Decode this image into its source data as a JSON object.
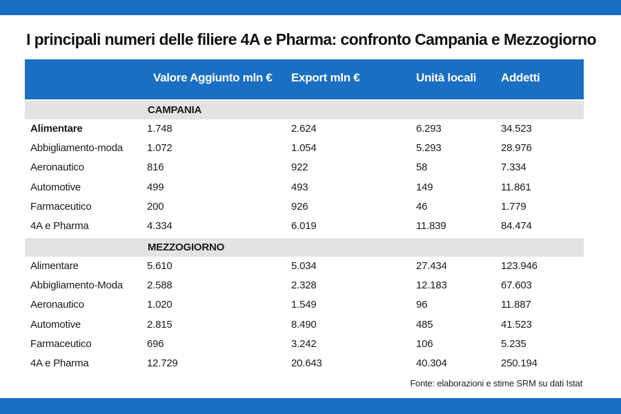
{
  "title": "I principali numeri delle filiere 4A e Pharma: confronto Campania e Mezzogiorno",
  "colors": {
    "accent": "#1a6fc4",
    "section_bg": "#e3e3e3"
  },
  "columns": [
    "Valore Aggiunto mln €",
    "Export mln €",
    "Unità locali",
    "Addetti"
  ],
  "sections": [
    {
      "label": "CAMPANIA",
      "rows": [
        {
          "name": "Alimentare",
          "values": [
            "1.748",
            "2.624",
            "6.293",
            "34.523"
          ]
        },
        {
          "name": "Abbigliamento-moda",
          "values": [
            "1.072",
            "1.054",
            "5.293",
            "28.976"
          ]
        },
        {
          "name": "Aeronautico",
          "values": [
            "816",
            "922",
            "58",
            "7.334"
          ]
        },
        {
          "name": "Automotive",
          "values": [
            "499",
            "493",
            "149",
            "11.861"
          ]
        },
        {
          "name": "Farmaceutico",
          "values": [
            "200",
            "926",
            "46",
            "1.779"
          ]
        },
        {
          "name": "4A e Pharma",
          "values": [
            "4.334",
            "6.019",
            "11.839",
            "84.474"
          ]
        }
      ]
    },
    {
      "label": "MEZZOGIORNO",
      "rows": [
        {
          "name": "Alimentare",
          "values": [
            "5.610",
            "5.034",
            "27.434",
            "123.946"
          ]
        },
        {
          "name": "Abbigliamento-Moda",
          "values": [
            "2.588",
            "2.328",
            "12.183",
            "67.603"
          ]
        },
        {
          "name": "Aeronautico",
          "values": [
            "1.020",
            "1.549",
            "96",
            "11.887"
          ]
        },
        {
          "name": "Automotive",
          "values": [
            "2.815",
            "8.490",
            "485",
            "41.523"
          ]
        },
        {
          "name": "Farmaceutico",
          "values": [
            "696",
            "3.242",
            "106",
            "5.235"
          ]
        },
        {
          "name": "4A e Pharma",
          "values": [
            "12.729",
            "20.643",
            "40.304",
            "250.194"
          ]
        }
      ]
    }
  ],
  "source": "Fonte: elaborazioni e stime SRM su dati Istat"
}
